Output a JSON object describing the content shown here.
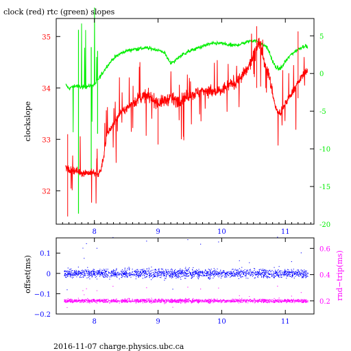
{
  "title": "clock (red) rtc (green) slopes",
  "footer": "2016-11-07  charge.physics.ubc.ca",
  "colors": {
    "clock": "#ff0000",
    "rtc": "#00ee00",
    "offset": "#0000ff",
    "rndtrip": "#ff00ff",
    "axis": "#000000"
  },
  "chart_data": [
    {
      "type": "line",
      "ylabel": "clockslope",
      "y2label": "",
      "xlim": [
        7.4,
        11.45
      ],
      "ylim": [
        31.35,
        35.35
      ],
      "y2lim": [
        -20,
        7.3
      ],
      "xticks": [
        8,
        9,
        10,
        11
      ],
      "yticks": [
        32,
        33,
        34,
        35
      ],
      "y2ticks": [
        -20,
        -15,
        -10,
        -5,
        0,
        5
      ],
      "series": [
        {
          "axis": "left",
          "x": [
            7.55,
            7.6,
            7.7,
            7.8,
            7.9,
            8.0,
            8.05,
            8.1,
            8.15,
            8.2,
            8.3,
            8.4,
            8.5,
            8.6,
            8.7,
            8.8,
            8.9,
            9.0,
            9.1,
            9.2,
            9.3,
            9.4,
            9.5,
            9.6,
            9.7,
            9.8,
            9.9,
            10.0,
            10.1,
            10.2,
            10.3,
            10.4,
            10.5,
            10.55,
            10.6,
            10.65,
            10.7,
            10.75,
            10.8,
            10.85,
            10.9,
            10.95,
            11.0,
            11.1,
            11.2,
            11.3,
            11.35
          ],
          "y": [
            32.45,
            32.4,
            32.4,
            32.35,
            32.35,
            32.35,
            32.3,
            32.4,
            32.7,
            33.1,
            33.3,
            33.5,
            33.6,
            33.7,
            33.8,
            33.85,
            33.8,
            33.7,
            33.75,
            33.8,
            33.75,
            33.8,
            33.85,
            33.9,
            33.95,
            33.95,
            33.9,
            33.95,
            34.05,
            34.1,
            34.2,
            34.35,
            34.6,
            34.8,
            34.9,
            34.6,
            34.4,
            34.2,
            33.9,
            33.6,
            33.5,
            33.55,
            33.7,
            33.9,
            34.1,
            34.3,
            34.35
          ]
        },
        {
          "axis": "right",
          "x": [
            7.55,
            7.6,
            7.7,
            7.8,
            7.9,
            8.0,
            8.1,
            8.2,
            8.3,
            8.4,
            8.5,
            8.6,
            8.7,
            8.8,
            8.9,
            9.0,
            9.1,
            9.15,
            9.2,
            9.25,
            9.3,
            9.4,
            9.5,
            9.6,
            9.7,
            9.8,
            9.9,
            10.0,
            10.1,
            10.2,
            10.3,
            10.4,
            10.5,
            10.55,
            10.6,
            10.7,
            10.75,
            10.8,
            10.85,
            10.9,
            10.95,
            11.0,
            11.1,
            11.2,
            11.3,
            11.35
          ],
          "y": [
            -1.5,
            -2.0,
            -1.6,
            -1.8,
            -1.7,
            -1.5,
            -0.3,
            1.0,
            2.0,
            2.6,
            3.0,
            3.2,
            3.3,
            3.4,
            3.3,
            3.1,
            2.8,
            2.0,
            1.4,
            1.5,
            2.0,
            2.6,
            3.0,
            3.3,
            3.6,
            3.9,
            4.0,
            4.0,
            3.8,
            3.7,
            3.9,
            4.2,
            4.4,
            4.3,
            4.0,
            3.6,
            2.8,
            1.6,
            0.8,
            0.6,
            0.9,
            1.6,
            2.6,
            3.2,
            3.7,
            3.5
          ]
        }
      ]
    },
    {
      "type": "scatter",
      "ylabel": "offset(ms)",
      "y2label": "rnd−trip(ms)",
      "xlim": [
        7.4,
        11.45
      ],
      "ylim": [
        -0.2,
        0.175
      ],
      "y2lim": [
        0.1,
        0.68
      ],
      "xticks": [
        8,
        9,
        10,
        11
      ],
      "yticks": [
        -0.2,
        -0.1,
        0,
        0.1
      ],
      "ytick_labels": [
        "−0.2",
        "−0.1",
        "0",
        "0.1"
      ],
      "y2ticks": [
        0.2,
        0.4,
        0.6
      ],
      "series": [
        {
          "axis": "left",
          "x_range": [
            7.52,
            11.35
          ],
          "center": 0.0,
          "spread": 0.035
        },
        {
          "axis": "right",
          "x_range": [
            7.52,
            11.35
          ],
          "center": 0.2,
          "spread": 0.022
        }
      ]
    }
  ]
}
